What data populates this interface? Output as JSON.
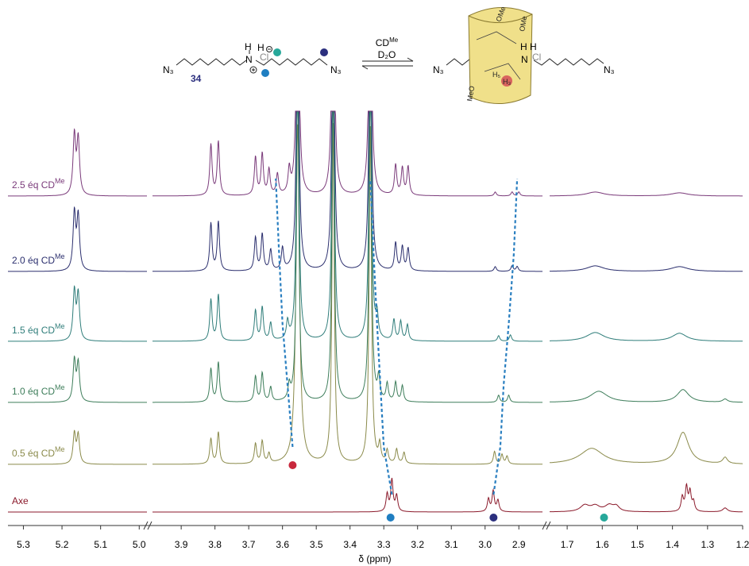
{
  "chart_data": {
    "type": "nmr-stack",
    "xlabel": "δ (ppm)",
    "segments": [
      {
        "xlim": [
          5.34,
          4.98
        ],
        "xticks": [
          5.3,
          5.2,
          5.1,
          {
            "value": 5,
            "label": "5.0"
          }
        ]
      },
      {
        "xlim": [
          3.985,
          2.83
        ],
        "xticks": [
          3.9,
          3.8,
          3.7,
          3.6,
          3.5,
          3.4,
          3.3,
          3.2,
          3.1,
          {
            "value": 3,
            "label": "3.0"
          },
          2.9
        ]
      },
      {
        "xlim": [
          1.75,
          1.2
        ],
        "xticks": [
          1.7,
          1.6,
          1.5,
          1.4,
          1.3,
          1.2
        ]
      }
    ],
    "linewidth": 0.004,
    "clip_height": 430,
    "series": [
      {
        "name": "Axe",
        "color": "#8b1a2b",
        "peaks": [
          [
            3.29,
            22
          ],
          [
            3.276,
            40
          ],
          [
            3.262,
            20
          ],
          [
            2.99,
            16
          ],
          [
            2.976,
            26
          ],
          [
            2.962,
            14
          ],
          [
            1.65,
            8,
            0.015
          ],
          [
            1.62,
            7,
            0.015
          ],
          [
            1.58,
            8,
            0.015
          ],
          [
            1.56,
            6,
            0.01
          ],
          [
            1.372,
            18
          ],
          [
            1.36,
            30
          ],
          [
            1.35,
            24
          ],
          [
            1.34,
            12
          ],
          [
            1.25,
            5,
            0.008
          ]
        ]
      },
      {
        "name": "0.5 éq CD",
        "sup": "Me",
        "color": "#8a8a4a",
        "peaks": [
          [
            5.168,
            38
          ],
          [
            5.158,
            36
          ],
          [
            3.812,
            32
          ],
          [
            3.79,
            40
          ],
          [
            3.68,
            25
          ],
          [
            3.66,
            28
          ],
          [
            3.64,
            12
          ],
          [
            3.555,
            430,
            0.006
          ],
          [
            3.45,
            430
          ],
          [
            3.34,
            430
          ],
          [
            3.312,
            22
          ],
          [
            3.29,
            16
          ],
          [
            3.262,
            18
          ],
          [
            3.24,
            14
          ],
          [
            2.972,
            16
          ],
          [
            2.95,
            12
          ],
          [
            2.935,
            10
          ],
          [
            1.63,
            20,
            0.04
          ],
          [
            1.37,
            40,
            0.02
          ],
          [
            1.25,
            8,
            0.008
          ]
        ]
      },
      {
        "name": "1.0 éq CD",
        "sup": "Me",
        "color": "#3d7d5a",
        "peaks": [
          [
            5.168,
            52
          ],
          [
            5.158,
            48
          ],
          [
            3.812,
            42
          ],
          [
            3.79,
            50
          ],
          [
            3.68,
            32
          ],
          [
            3.66,
            36
          ],
          [
            3.635,
            18
          ],
          [
            3.58,
            18
          ],
          [
            3.555,
            430
          ],
          [
            3.45,
            430
          ],
          [
            3.34,
            430
          ],
          [
            3.315,
            28
          ],
          [
            3.29,
            22
          ],
          [
            3.265,
            24
          ],
          [
            3.245,
            20
          ],
          [
            2.96,
            9
          ],
          [
            2.93,
            9
          ],
          [
            1.61,
            14,
            0.03
          ],
          [
            1.37,
            16,
            0.02
          ],
          [
            1.25,
            4,
            0.008
          ]
        ]
      },
      {
        "name": "1.5 éq CD",
        "sup": "Me",
        "color": "#2f7d7a",
        "peaks": [
          [
            5.168,
            62
          ],
          [
            5.158,
            58
          ],
          [
            3.812,
            52
          ],
          [
            3.79,
            58
          ],
          [
            3.68,
            38
          ],
          [
            3.66,
            42
          ],
          [
            3.635,
            22
          ],
          [
            3.585,
            22
          ],
          [
            3.555,
            430
          ],
          [
            3.45,
            430
          ],
          [
            3.34,
            430
          ],
          [
            3.32,
            28
          ],
          [
            3.27,
            26
          ],
          [
            3.25,
            24
          ],
          [
            3.23,
            20
          ],
          [
            2.96,
            7
          ],
          [
            2.925,
            8
          ],
          [
            1.62,
            11,
            0.03
          ],
          [
            1.38,
            10,
            0.025
          ]
        ]
      },
      {
        "name": "2.0 éq CD",
        "sup": "Me",
        "color": "#2b2f6e",
        "peaks": [
          [
            5.168,
            72
          ],
          [
            5.158,
            68
          ],
          [
            3.812,
            60
          ],
          [
            3.79,
            62
          ],
          [
            3.68,
            42
          ],
          [
            3.66,
            46
          ],
          [
            3.635,
            26
          ],
          [
            3.6,
            28
          ],
          [
            3.555,
            430
          ],
          [
            3.45,
            430
          ],
          [
            3.34,
            430
          ],
          [
            3.265,
            35
          ],
          [
            3.245,
            30
          ],
          [
            3.228,
            28
          ],
          [
            2.97,
            6
          ],
          [
            2.92,
            7
          ],
          [
            2.905,
            6
          ],
          [
            1.62,
            7,
            0.03
          ],
          [
            1.38,
            6,
            0.03
          ]
        ]
      },
      {
        "name": "2.5 éq CD",
        "sup": "Me",
        "color": "#7a3a7a",
        "peaks": [
          [
            5.168,
            75
          ],
          [
            5.158,
            70
          ],
          [
            3.812,
            64
          ],
          [
            3.79,
            68
          ],
          [
            3.68,
            48
          ],
          [
            3.66,
            52
          ],
          [
            3.64,
            32
          ],
          [
            3.615,
            26
          ],
          [
            3.58,
            30
          ],
          [
            3.555,
            430
          ],
          [
            3.45,
            430
          ],
          [
            3.34,
            430
          ],
          [
            3.265,
            38
          ],
          [
            3.245,
            34
          ],
          [
            3.228,
            36
          ],
          [
            2.97,
            5
          ],
          [
            2.92,
            5
          ],
          [
            2.9,
            5
          ],
          [
            1.62,
            5,
            0.03
          ],
          [
            1.38,
            4,
            0.03
          ]
        ]
      }
    ],
    "guides": [
      {
        "color": "#2a7fc0",
        "ppm": [
          null,
          3.57,
          3.585,
          3.6,
          3.61,
          3.62
        ]
      },
      {
        "color": "#2a7fc0",
        "ppm": [
          3.276,
          3.3,
          3.31,
          3.32,
          3.33,
          3.34
        ]
      },
      {
        "color": "#2a7fc0",
        "ppm": [
          2.975,
          2.955,
          2.945,
          2.93,
          2.915,
          2.905
        ]
      }
    ],
    "markers": [
      {
        "ppm": 3.57,
        "color": "#c8283c"
      },
      {
        "ppm": 3.28,
        "color": "#1f7ec1"
      },
      {
        "ppm": 2.975,
        "color": "#2b2f7e"
      },
      {
        "ppm": 1.595,
        "color": "#27a89a"
      }
    ]
  },
  "scheme": {
    "azide": "N₃",
    "compound": "34",
    "h": "H",
    "n": "N",
    "cl": "Cl",
    "reagent": "CD",
    "reagent_sup": "Me",
    "solvent": "D₂O",
    "h3": "H₃",
    "h5": "H₅",
    "ome": "OMe",
    "meo": "MeO"
  }
}
